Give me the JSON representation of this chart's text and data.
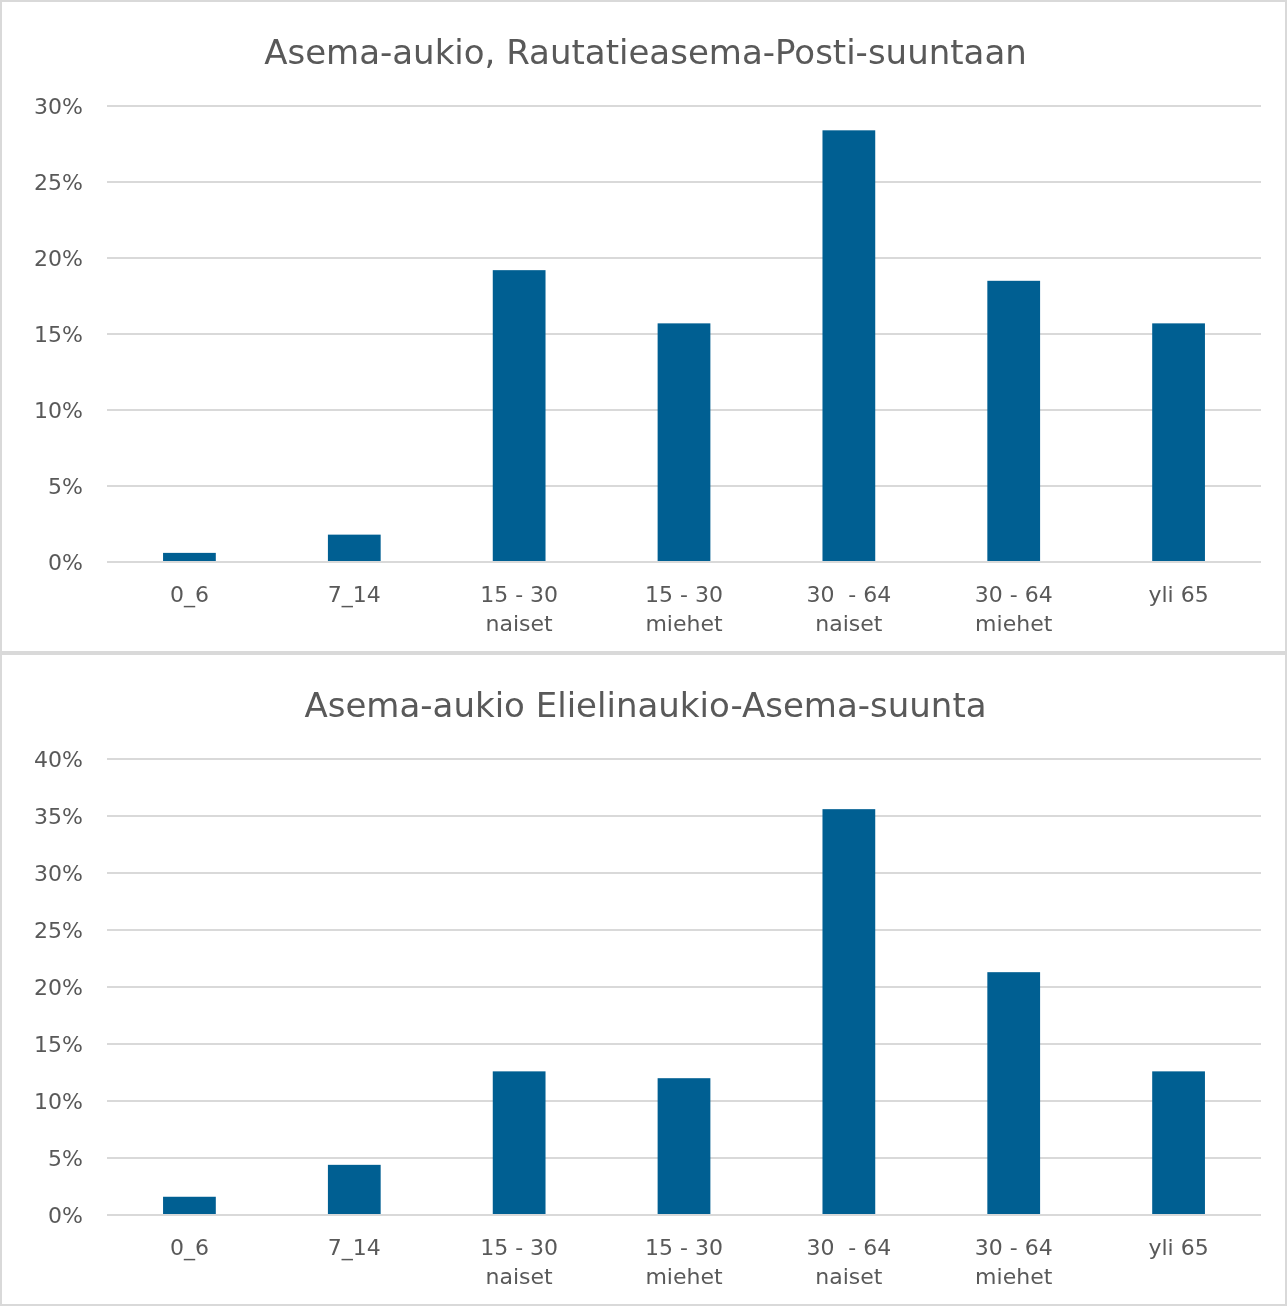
{
  "chart_data": [
    {
      "type": "bar",
      "title": "Asema-aukio, Rautatieasema-Posti-suuntaan",
      "categories": [
        "0_6",
        "7_14",
        "15 - 30\nnaiset",
        "15 - 30\nmiehet",
        "30  - 64\nnaiset",
        "30 - 64\nmiehet",
        "yli 65"
      ],
      "values": [
        0.6,
        1.8,
        19.2,
        15.7,
        28.4,
        18.5,
        15.7
      ],
      "color": "#005f92",
      "ylim": [
        0,
        30
      ],
      "yticks": [
        {
          "value": 0,
          "label": "0%"
        },
        {
          "value": 5,
          "label": "5%"
        },
        {
          "value": 10,
          "label": "10%"
        },
        {
          "value": 15,
          "label": "15%"
        },
        {
          "value": 20,
          "label": "20%"
        },
        {
          "value": 25,
          "label": "25%"
        },
        {
          "value": 30,
          "label": "30%"
        }
      ],
      "grid": "y"
    },
    {
      "type": "bar",
      "title": "Asema-aukio Elielinaukio-Asema-suunta",
      "categories": [
        "0_6",
        "7_14",
        "15 - 30\nnaiset",
        "15 - 30\nmiehet",
        "30  - 64\nnaiset",
        "30 - 64\nmiehet",
        "yli 65"
      ],
      "values": [
        1.6,
        4.4,
        12.6,
        12.0,
        35.6,
        21.3,
        12.6
      ],
      "color": "#005f92",
      "ylim": [
        0,
        40
      ],
      "yticks": [
        {
          "value": 0,
          "label": "0%"
        },
        {
          "value": 5,
          "label": "5%"
        },
        {
          "value": 10,
          "label": "10%"
        },
        {
          "value": 15,
          "label": "15%"
        },
        {
          "value": 20,
          "label": "20%"
        },
        {
          "value": 25,
          "label": "25%"
        },
        {
          "value": 30,
          "label": "30%"
        },
        {
          "value": 35,
          "label": "35%"
        },
        {
          "value": 40,
          "label": "40%"
        }
      ],
      "grid": "y"
    }
  ]
}
